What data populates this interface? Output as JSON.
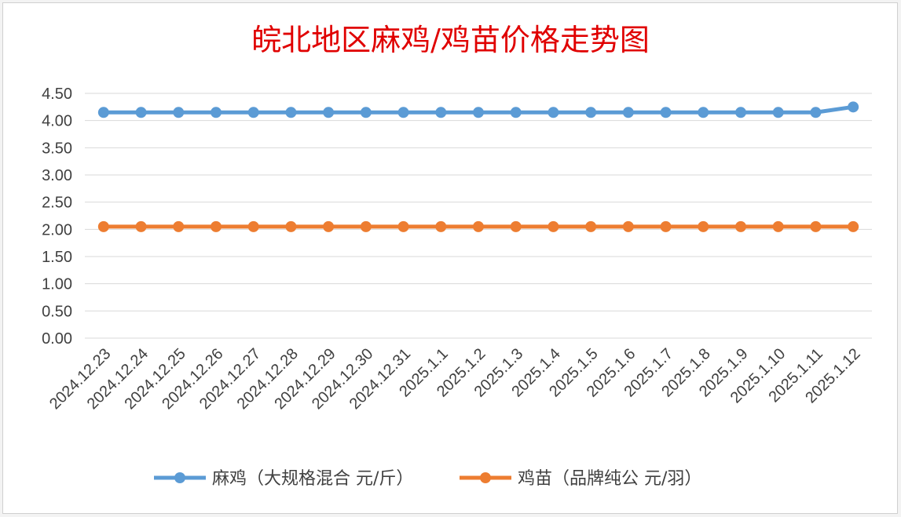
{
  "chart_data": {
    "type": "line",
    "title": "皖北地区麻鸡/鸡苗价格走势图",
    "categories": [
      "2024.12.23",
      "2024.12.24",
      "2024.12.25",
      "2024.12.26",
      "2024.12.27",
      "2024.12.28",
      "2024.12.29",
      "2024.12.30",
      "2024.12.31",
      "2025.1.1",
      "2025.1.2",
      "2025.1.3",
      "2025.1.4",
      "2025.1.5",
      "2025.1.6",
      "2025.1.7",
      "2025.1.8",
      "2025.1.9",
      "2025.1.10",
      "2025.1.11",
      "2025.1.12"
    ],
    "series": [
      {
        "name": "麻鸡（大规格混合 元/斤）",
        "color": "#5b9bd5",
        "values": [
          4.15,
          4.15,
          4.15,
          4.15,
          4.15,
          4.15,
          4.15,
          4.15,
          4.15,
          4.15,
          4.15,
          4.15,
          4.15,
          4.15,
          4.15,
          4.15,
          4.15,
          4.15,
          4.15,
          4.15,
          4.25
        ]
      },
      {
        "name": "鸡苗（品牌纯公 元/羽）",
        "color": "#ed7d31",
        "values": [
          2.05,
          2.05,
          2.05,
          2.05,
          2.05,
          2.05,
          2.05,
          2.05,
          2.05,
          2.05,
          2.05,
          2.05,
          2.05,
          2.05,
          2.05,
          2.05,
          2.05,
          2.05,
          2.05,
          2.05,
          2.05
        ]
      }
    ],
    "ylim": [
      0,
      4.5
    ],
    "yticks": [
      "0.00",
      "0.50",
      "1.00",
      "1.50",
      "2.00",
      "2.50",
      "3.00",
      "3.50",
      "4.00",
      "4.50"
    ],
    "grid": true,
    "legend": "bottom",
    "title_color": "#e00000"
  }
}
